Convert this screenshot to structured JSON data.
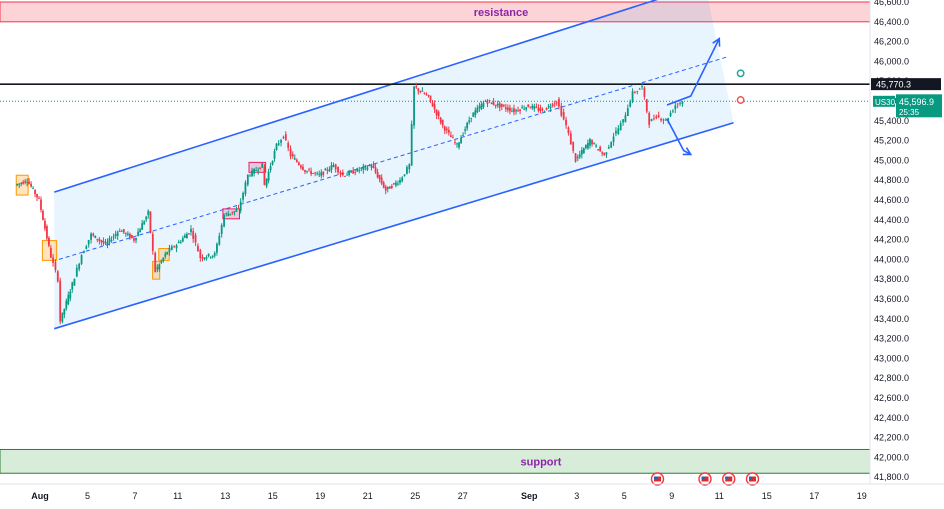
{
  "chart_data": {
    "type": "candlestick",
    "symbol": "US30",
    "last_price": "45,596.9",
    "countdown": "25:35",
    "level_label": "45,770.3",
    "level_value": 45770.3,
    "ylim": [
      41700,
      46650
    ],
    "y_ticks": [
      41800,
      42000,
      42200,
      42400,
      42600,
      42800,
      43000,
      43200,
      43400,
      43600,
      43800,
      44000,
      44200,
      44400,
      44600,
      44800,
      45000,
      45200,
      45400,
      45600,
      45800,
      46000,
      46200,
      46400,
      46600
    ],
    "y_tick_labels": [
      "41,800.0",
      "42,000.0",
      "42,200.0",
      "42,400.0",
      "42,600.0",
      "42,800.0",
      "43,000.0",
      "43,200.0",
      "43,400.0",
      "43,600.0",
      "43,800.0",
      "44,000.0",
      "44,200.0",
      "44,400.0",
      "44,600.0",
      "44,800.0",
      "45,000.0",
      "45,200.0",
      "45,400.0",
      "45,600.0",
      "45,800.0",
      "46,000.0",
      "46,200.0",
      "46,400.0",
      "46,600.0"
    ],
    "x_ticks": [
      {
        "label": "Aug",
        "idx": 0.0,
        "bold": true
      },
      {
        "label": "5",
        "idx": 1.0
      },
      {
        "label": "7",
        "idx": 2.0
      },
      {
        "label": "11",
        "idx": 2.9
      },
      {
        "label": "13",
        "idx": 3.9
      },
      {
        "label": "15",
        "idx": 4.9
      },
      {
        "label": "19",
        "idx": 5.9
      },
      {
        "label": "21",
        "idx": 6.9
      },
      {
        "label": "25",
        "idx": 7.9
      },
      {
        "label": "27",
        "idx": 8.9
      },
      {
        "label": "Sep",
        "idx": 10.3,
        "bold": true
      },
      {
        "label": "3",
        "idx": 11.3
      },
      {
        "label": "5",
        "idx": 12.3
      },
      {
        "label": "9",
        "idx": 13.3
      },
      {
        "label": "11",
        "idx": 14.3
      },
      {
        "label": "15",
        "idx": 15.3
      },
      {
        "label": "17",
        "idx": 16.3
      },
      {
        "label": "19",
        "idx": 17.3
      }
    ],
    "resistance": {
      "label": "resistance",
      "from": 46400,
      "to": 46600
    },
    "support": {
      "label": "support",
      "from": 41840,
      "to": 42080
    },
    "channel": {
      "upper": [
        {
          "idx": 0.3,
          "price": 44680
        },
        {
          "idx": 14.0,
          "price": 46780
        }
      ],
      "lower": [
        {
          "idx": 0.3,
          "price": 43300
        },
        {
          "idx": 14.6,
          "price": 45380
        }
      ],
      "mid": [
        {
          "idx": 0.4,
          "price": 44000
        },
        {
          "idx": 14.5,
          "price": 46050
        }
      ]
    },
    "forecast_up": [
      {
        "idx": 13.2,
        "price": 45560
      },
      {
        "idx": 13.7,
        "price": 45650
      },
      {
        "idx": 14.3,
        "price": 46230
      }
    ],
    "forecast_down": [
      {
        "idx": 13.2,
        "price": 45420
      },
      {
        "idx": 13.55,
        "price": 45100
      },
      {
        "idx": 13.7,
        "price": 45060
      }
    ],
    "markers": [
      {
        "color": "#26a69a",
        "idx": 14.75,
        "price": 45880
      },
      {
        "color": "#ef5350",
        "idx": 14.75,
        "price": 45610
      }
    ],
    "event_icons": [
      13.0,
      14.0,
      14.5,
      15.0
    ],
    "boxes": [
      {
        "color": "#ff9800",
        "i0": -0.5,
        "i1": -0.25,
        "p0": 44650,
        "p1": 44850
      },
      {
        "color": "#ff9800",
        "i0": 0.05,
        "i1": 0.35,
        "p0": 43990,
        "p1": 44190
      },
      {
        "color": "#ff9800",
        "i0": 2.37,
        "i1": 2.52,
        "p0": 43800,
        "p1": 43980
      },
      {
        "color": "#ff9800",
        "i0": 2.5,
        "i1": 2.72,
        "p0": 43990,
        "p1": 44110
      },
      {
        "color": "#e91e63",
        "i0": 3.85,
        "i1": 4.2,
        "p0": 44410,
        "p1": 44510
      },
      {
        "color": "#e91e63",
        "i0": 4.4,
        "i1": 4.75,
        "p0": 44880,
        "p1": 44980
      }
    ],
    "anchors": [
      {
        "idx": -0.5,
        "price": 44750
      },
      {
        "idx": -0.25,
        "price": 44800
      },
      {
        "idx": 0.0,
        "price": 44600
      },
      {
        "idx": 0.25,
        "price": 44030
      },
      {
        "idx": 0.4,
        "price": 43800
      },
      {
        "idx": 0.45,
        "price": 43380
      },
      {
        "idx": 0.7,
        "price": 43750
      },
      {
        "idx": 0.9,
        "price": 44050
      },
      {
        "idx": 1.1,
        "price": 44250
      },
      {
        "idx": 1.4,
        "price": 44150
      },
      {
        "idx": 1.7,
        "price": 44300
      },
      {
        "idx": 2.0,
        "price": 44200
      },
      {
        "idx": 2.3,
        "price": 44470
      },
      {
        "idx": 2.45,
        "price": 43880
      },
      {
        "idx": 2.7,
        "price": 44080
      },
      {
        "idx": 2.9,
        "price": 44150
      },
      {
        "idx": 3.2,
        "price": 44300
      },
      {
        "idx": 3.4,
        "price": 44020
      },
      {
        "idx": 3.7,
        "price": 44050
      },
      {
        "idx": 3.9,
        "price": 44450
      },
      {
        "idx": 4.2,
        "price": 44500
      },
      {
        "idx": 4.4,
        "price": 44850
      },
      {
        "idx": 4.7,
        "price": 44950
      },
      {
        "idx": 4.75,
        "price": 44750
      },
      {
        "idx": 5.0,
        "price": 45150
      },
      {
        "idx": 5.15,
        "price": 45250
      },
      {
        "idx": 5.3,
        "price": 45050
      },
      {
        "idx": 5.6,
        "price": 44900
      },
      {
        "idx": 5.9,
        "price": 44850
      },
      {
        "idx": 6.2,
        "price": 44950
      },
      {
        "idx": 6.4,
        "price": 44850
      },
      {
        "idx": 6.7,
        "price": 44900
      },
      {
        "idx": 7.0,
        "price": 44950
      },
      {
        "idx": 7.3,
        "price": 44700
      },
      {
        "idx": 7.6,
        "price": 44800
      },
      {
        "idx": 7.8,
        "price": 44950
      },
      {
        "idx": 7.9,
        "price": 45740
      },
      {
        "idx": 8.2,
        "price": 45640
      },
      {
        "idx": 8.5,
        "price": 45350
      },
      {
        "idx": 8.8,
        "price": 45150
      },
      {
        "idx": 9.1,
        "price": 45450
      },
      {
        "idx": 9.4,
        "price": 45600
      },
      {
        "idx": 9.7,
        "price": 45550
      },
      {
        "idx": 10.0,
        "price": 45500
      },
      {
        "idx": 10.3,
        "price": 45550
      },
      {
        "idx": 10.6,
        "price": 45500
      },
      {
        "idx": 10.9,
        "price": 45600
      },
      {
        "idx": 11.1,
        "price": 45350
      },
      {
        "idx": 11.3,
        "price": 45000
      },
      {
        "idx": 11.6,
        "price": 45200
      },
      {
        "idx": 11.9,
        "price": 45050
      },
      {
        "idx": 12.1,
        "price": 45250
      },
      {
        "idx": 12.3,
        "price": 45400
      },
      {
        "idx": 12.5,
        "price": 45680
      },
      {
        "idx": 12.7,
        "price": 45740
      },
      {
        "idx": 12.85,
        "price": 45380
      },
      {
        "idx": 13.0,
        "price": 45450
      },
      {
        "idx": 13.2,
        "price": 45400
      },
      {
        "idx": 13.4,
        "price": 45560
      },
      {
        "idx": 13.55,
        "price": 45600
      }
    ]
  }
}
